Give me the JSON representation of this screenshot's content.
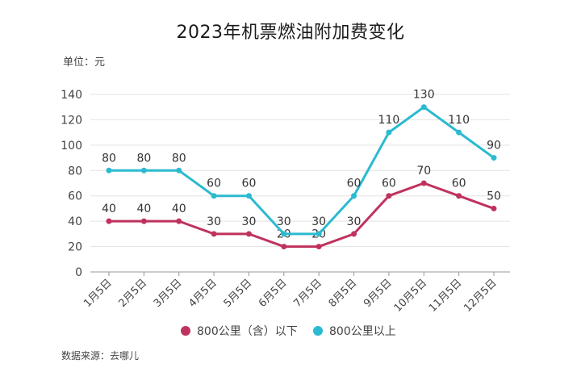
{
  "title": "2023年机票燃油附加费变化",
  "unit_label": "单位：元",
  "source_label": "数据来源：去哪儿",
  "colors": {
    "series1": "#c0325e",
    "series2": "#2bbad0",
    "grid": "#e3e3e3",
    "axis": "#999999"
  },
  "chart_data": {
    "type": "line",
    "title": "2023年机票燃油附加费变化",
    "xlabel": "",
    "ylabel": "单位：元",
    "categories": [
      "1月5日",
      "2月5日",
      "3月5日",
      "4月5日",
      "5月5日",
      "6月5日",
      "7月5日",
      "8月5日",
      "9月5日",
      "10月5日",
      "11月5日",
      "12月5日"
    ],
    "ylim": [
      0,
      140
    ],
    "yticks": [
      0,
      20,
      40,
      60,
      80,
      100,
      120,
      140
    ],
    "grid": true,
    "legend_position": "bottom",
    "series": [
      {
        "name": "800公里（含）以下",
        "color": "#c0325e",
        "values": [
          40,
          40,
          40,
          30,
          30,
          20,
          20,
          30,
          60,
          70,
          60,
          50
        ]
      },
      {
        "name": "800公里以上",
        "color": "#2bbad0",
        "values": [
          80,
          80,
          80,
          60,
          60,
          30,
          30,
          60,
          110,
          130,
          110,
          90
        ]
      }
    ]
  }
}
